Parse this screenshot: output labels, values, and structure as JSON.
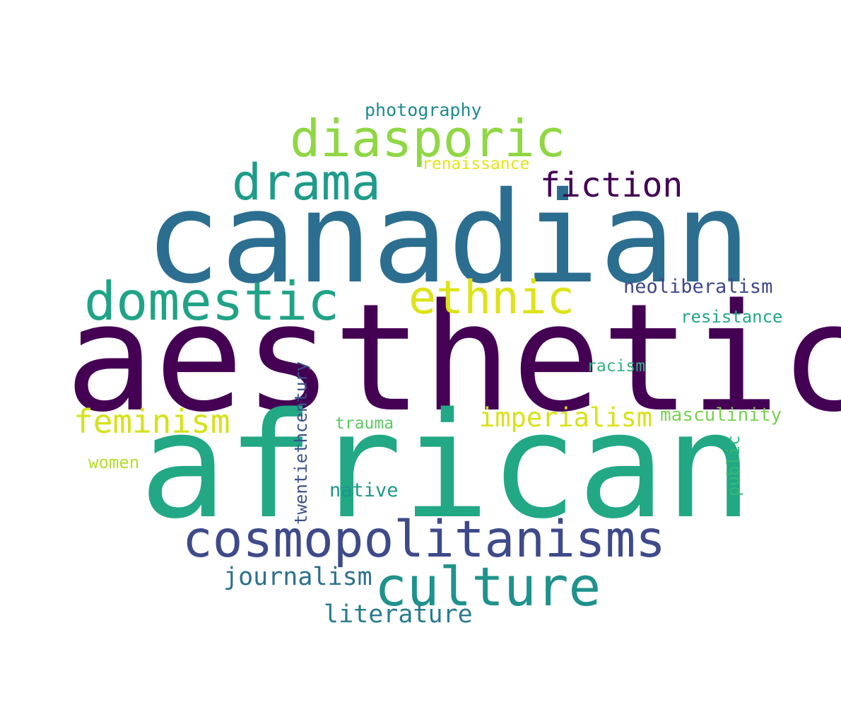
{
  "colors": {
    "background": "#ffffff"
  },
  "words": [
    {
      "text": "aesthetic",
      "color": "#440154"
    },
    {
      "text": "african",
      "color": "#22a884"
    },
    {
      "text": "canadian",
      "color": "#2c6e8f"
    },
    {
      "text": "cosmopolitanisms",
      "color": "#3e4a89"
    },
    {
      "text": "culture",
      "color": "#1f928c"
    },
    {
      "text": "diasporic",
      "color": "#8fd744"
    },
    {
      "text": "domestic",
      "color": "#20a386"
    },
    {
      "text": "drama",
      "color": "#1e9b8a"
    },
    {
      "text": "ethnic",
      "color": "#dde318"
    },
    {
      "text": "fiction",
      "color": "#440154"
    },
    {
      "text": "feminism",
      "color": "#d5e21a"
    },
    {
      "text": "imperialism",
      "color": "#d8e219"
    },
    {
      "text": "journalism",
      "color": "#2d708e"
    },
    {
      "text": "literature",
      "color": "#297b8e"
    },
    {
      "text": "photography",
      "color": "#1f8a8c"
    },
    {
      "text": "renaissance",
      "color": "#e5e419"
    },
    {
      "text": "neoliberalism",
      "color": "#3f4788"
    },
    {
      "text": "resistance",
      "color": "#22a785"
    },
    {
      "text": "racism",
      "color": "#2fb47c"
    },
    {
      "text": "masculinity",
      "color": "#7ad151"
    },
    {
      "text": "trauma",
      "color": "#5ec962"
    },
    {
      "text": "women",
      "color": "#b5de2b"
    },
    {
      "text": "native",
      "color": "#1f968b"
    },
    {
      "text": "twentiethcentury",
      "color": "#3b528b"
    },
    {
      "text": "public",
      "color": "#35b779"
    }
  ]
}
